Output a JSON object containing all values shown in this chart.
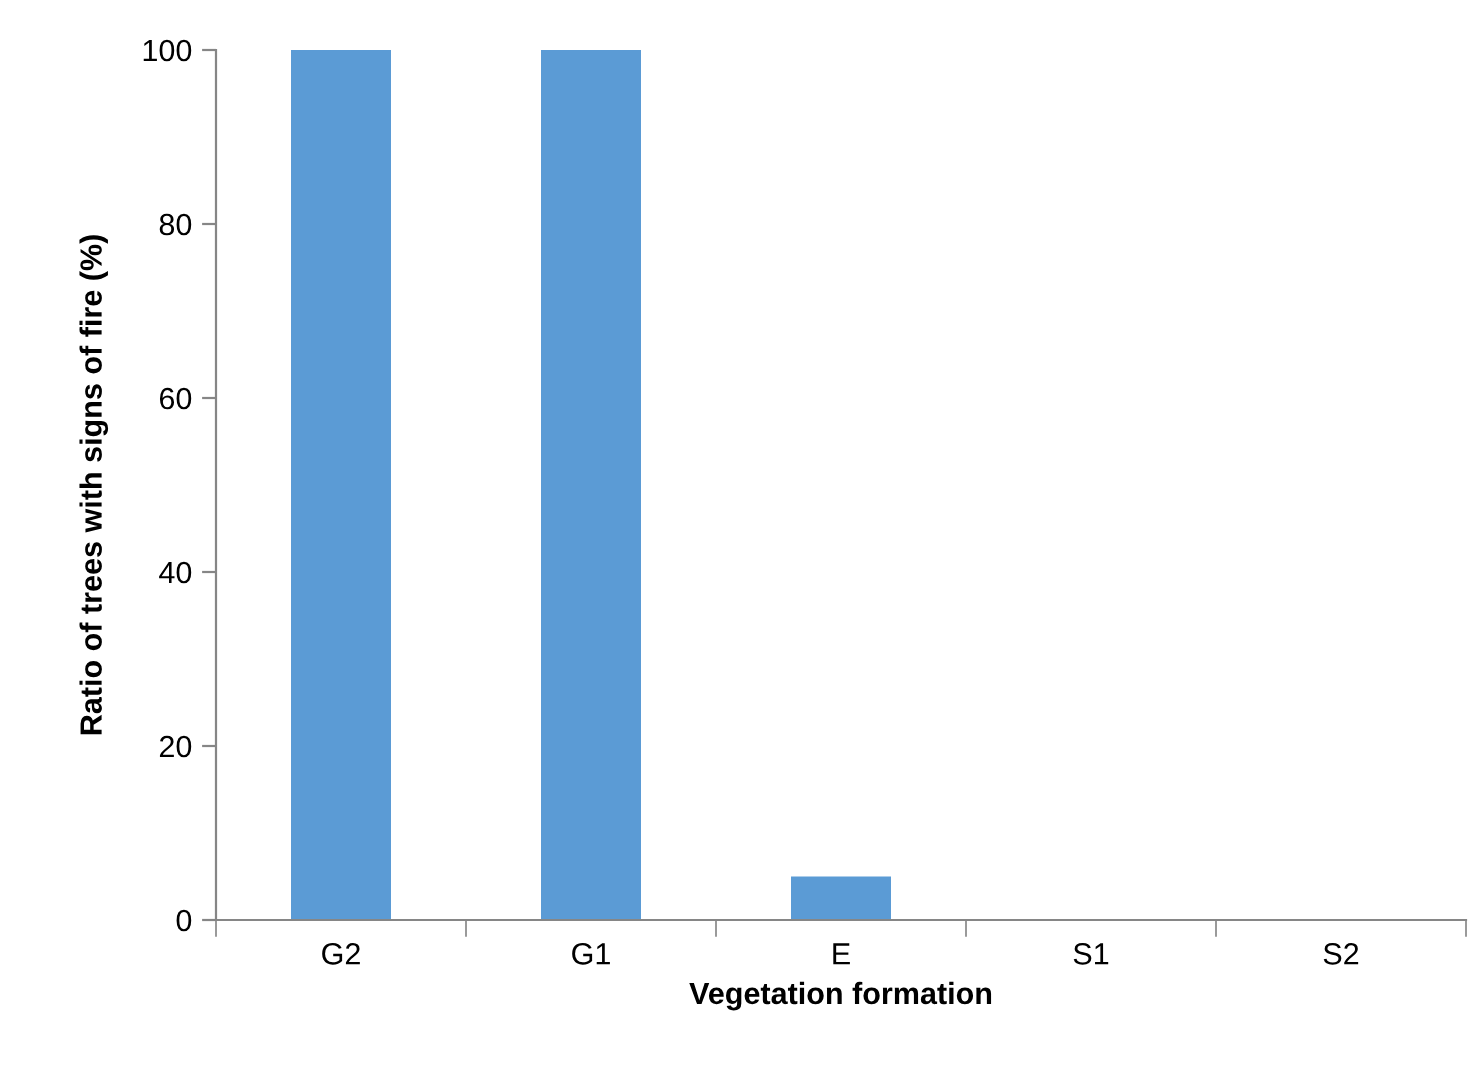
{
  "chart_data": {
    "type": "bar",
    "xlabel": "Vegetation formation",
    "ylabel": "Ratio of trees with signs of fire (%)",
    "categories": [
      "G2",
      "G1",
      "E",
      "S1",
      "S2"
    ],
    "values": [
      100,
      100,
      5,
      0,
      0
    ],
    "color": "#5b9bd5",
    "ylim": [
      0,
      100
    ],
    "yticks": [
      0,
      20,
      40,
      60,
      80,
      100
    ],
    "grid": false,
    "legend": false
  }
}
